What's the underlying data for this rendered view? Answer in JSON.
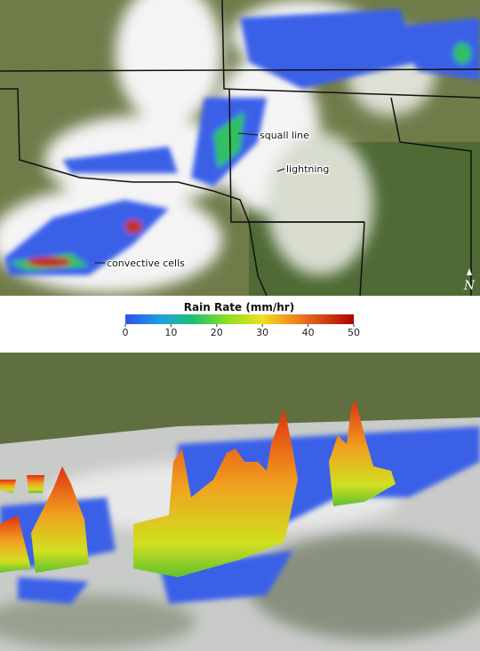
{
  "annotations": [
    "squall line",
    "lightning",
    "convective cells"
  ],
  "north_label": "N",
  "legend": {
    "title": "Rain Rate (mm/hr)",
    "range": [
      0,
      50
    ],
    "ticks": [
      0,
      10,
      20,
      30,
      40,
      50
    ]
  }
}
